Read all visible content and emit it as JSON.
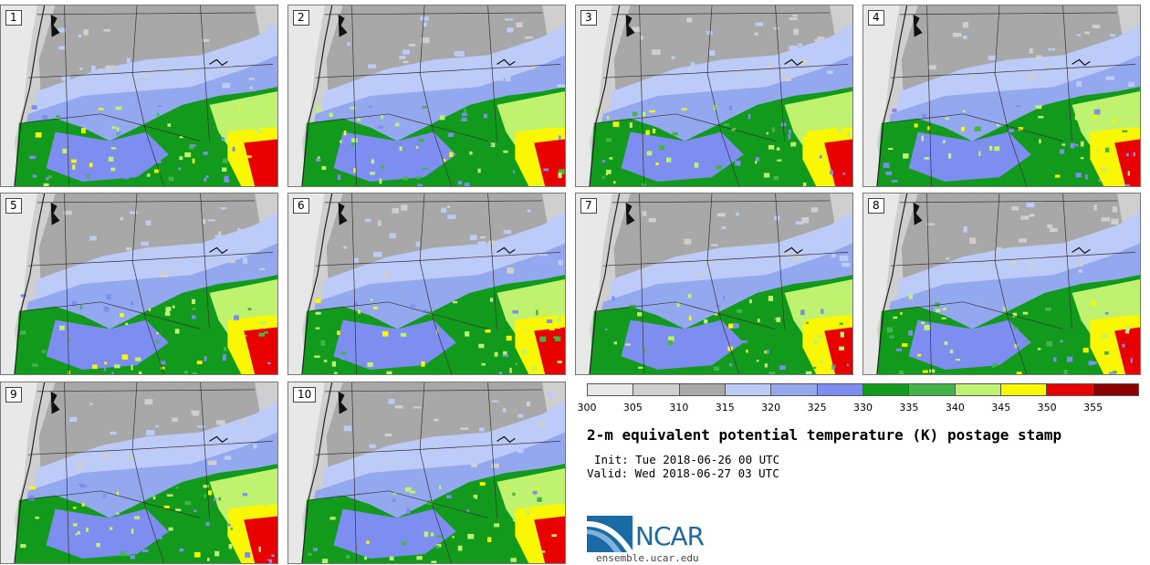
{
  "panels": [
    {
      "label": "1"
    },
    {
      "label": "2"
    },
    {
      "label": "3"
    },
    {
      "label": "4"
    },
    {
      "label": "5"
    },
    {
      "label": "6"
    },
    {
      "label": "7"
    },
    {
      "label": "8"
    },
    {
      "label": "9"
    },
    {
      "label": "10"
    }
  ],
  "colorbar": {
    "ticks": [
      "300",
      "305",
      "310",
      "315",
      "320",
      "325",
      "330",
      "335",
      "340",
      "345",
      "350",
      "355"
    ],
    "colors": [
      "#e8e8e8",
      "#cfcfcf",
      "#a8a8a8",
      "#bccbf7",
      "#94a8f0",
      "#7d8df0",
      "#129a1c",
      "#43b548",
      "#bff26f",
      "#f9f704",
      "#e80000",
      "#8b0000"
    ]
  },
  "title": "2-m equivalent potential temperature (K) postage stamp",
  "init_line": "Init: Tue 2018-06-26 00 UTC",
  "valid_line": "Valid: Wed 2018-06-27 03 UTC",
  "logo": {
    "name": "NCAR",
    "url": "ensemble.ucar.edu"
  }
}
